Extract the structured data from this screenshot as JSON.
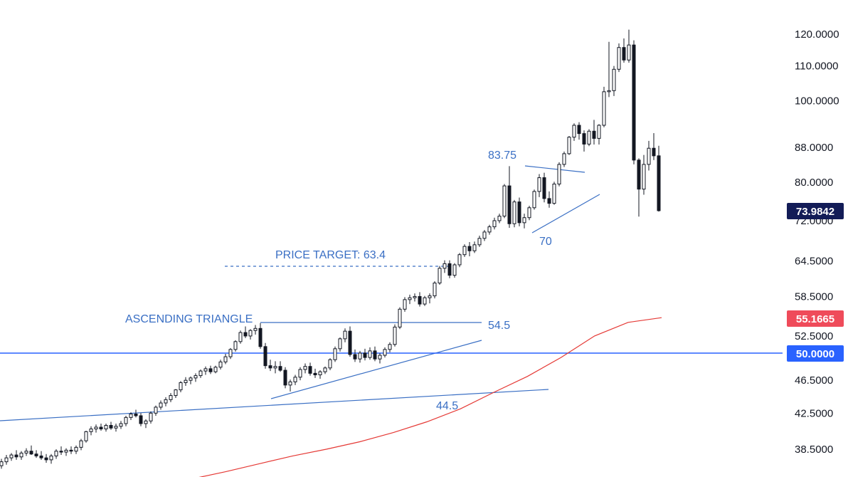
{
  "chart_data": {
    "type": "candlestick",
    "y_scale": "log",
    "ylim": [
      36.5,
      121.5
    ],
    "y_ticks": [
      "120.0000",
      "110.0000",
      "100.0000",
      "88.0000",
      "80.0000",
      "72.0000",
      "64.5000",
      "58.5000",
      "52.5000",
      "46.5000",
      "42.5000",
      "38.5000"
    ],
    "price_badges": [
      {
        "label": "73.9842",
        "color": "#131c57"
      },
      {
        "label": "55.1665",
        "color": "#ef4b5a"
      },
      {
        "label": "50.0000",
        "color": "#2962ff"
      }
    ],
    "annotations": {
      "ascending_triangle": "ASCENDING TRIANGLE",
      "price_target": "PRICE TARGET: 63.4",
      "resistance": "54.5",
      "trend_support": "44.5",
      "pennant_high": "83.75",
      "pennant_low": "70"
    },
    "levels": {
      "horizontal_support": 50.0,
      "resistance": 54.5,
      "price_target": 63.4
    },
    "moving_average": {
      "color": "#e53935",
      "values": [
        35.5,
        36.2,
        37.0,
        37.8,
        38.5,
        39.3,
        40.3,
        41.5,
        43.0,
        45.0,
        47.0,
        49.5,
        52.5,
        54.5,
        55.2
      ]
    },
    "candles": [
      [
        36.8,
        37.5,
        36.5,
        37.2
      ],
      [
        37.2,
        37.9,
        36.9,
        37.6
      ],
      [
        37.6,
        38.1,
        37.3,
        37.9
      ],
      [
        37.9,
        38.4,
        37.4,
        37.7
      ],
      [
        37.7,
        38.3,
        37.4,
        38.1
      ],
      [
        38.1,
        38.6,
        37.8,
        38.3
      ],
      [
        38.3,
        38.9,
        37.9,
        38.0
      ],
      [
        38.0,
        38.4,
        37.6,
        37.8
      ],
      [
        37.8,
        38.3,
        37.4,
        37.6
      ],
      [
        37.6,
        38.0,
        37.1,
        37.4
      ],
      [
        37.4,
        38.0,
        37.0,
        37.8
      ],
      [
        37.8,
        38.5,
        37.5,
        38.3
      ],
      [
        38.3,
        38.8,
        37.9,
        38.2
      ],
      [
        38.2,
        38.6,
        37.8,
        38.4
      ],
      [
        38.4,
        38.8,
        38.0,
        38.3
      ],
      [
        38.3,
        38.9,
        38.0,
        38.7
      ],
      [
        38.7,
        39.6,
        38.4,
        39.4
      ],
      [
        39.4,
        40.5,
        39.2,
        40.4
      ],
      [
        40.4,
        41.0,
        40.0,
        40.7
      ],
      [
        40.7,
        41.2,
        40.3,
        40.9
      ],
      [
        40.9,
        41.3,
        40.5,
        40.7
      ],
      [
        40.7,
        41.3,
        40.4,
        41.1
      ],
      [
        41.1,
        41.5,
        40.6,
        40.8
      ],
      [
        40.8,
        41.3,
        40.4,
        41.0
      ],
      [
        41.0,
        41.6,
        40.7,
        41.3
      ],
      [
        41.3,
        42.2,
        41.0,
        42.0
      ],
      [
        42.0,
        42.6,
        41.7,
        42.4
      ],
      [
        42.4,
        42.9,
        42.0,
        42.2
      ],
      [
        42.2,
        42.5,
        41.0,
        41.3
      ],
      [
        41.3,
        41.8,
        40.8,
        41.6
      ],
      [
        41.6,
        42.7,
        41.3,
        42.5
      ],
      [
        42.5,
        43.4,
        42.2,
        43.2
      ],
      [
        43.2,
        44.0,
        42.9,
        43.7
      ],
      [
        43.7,
        44.4,
        43.3,
        44.1
      ],
      [
        44.1,
        44.9,
        43.8,
        44.6
      ],
      [
        44.6,
        45.4,
        44.3,
        45.3
      ],
      [
        45.3,
        46.4,
        45.0,
        46.2
      ],
      [
        46.2,
        46.9,
        45.8,
        46.5
      ],
      [
        46.5,
        47.0,
        46.0,
        46.8
      ],
      [
        46.8,
        47.4,
        46.3,
        47.1
      ],
      [
        47.1,
        47.9,
        46.8,
        47.7
      ],
      [
        47.7,
        48.3,
        47.2,
        48.0
      ],
      [
        48.0,
        48.4,
        47.3,
        47.6
      ],
      [
        47.6,
        48.4,
        47.4,
        48.2
      ],
      [
        48.2,
        49.2,
        47.9,
        48.9
      ],
      [
        48.9,
        50.0,
        48.6,
        49.6
      ],
      [
        49.6,
        50.8,
        49.3,
        50.6
      ],
      [
        50.6,
        51.9,
        50.3,
        51.7
      ],
      [
        51.7,
        53.3,
        51.4,
        53.0
      ],
      [
        53.0,
        53.9,
        52.2,
        52.5
      ],
      [
        52.5,
        53.5,
        52.0,
        53.3
      ],
      [
        53.3,
        54.1,
        52.7,
        53.6
      ],
      [
        53.6,
        54.4,
        50.7,
        51.0
      ],
      [
        51.0,
        51.5,
        48.0,
        48.4
      ],
      [
        48.4,
        49.2,
        47.7,
        48.1
      ],
      [
        48.1,
        49.0,
        47.4,
        48.3
      ],
      [
        48.3,
        49.0,
        47.6,
        47.8
      ],
      [
        47.8,
        48.2,
        45.5,
        45.9
      ],
      [
        45.9,
        46.6,
        45.1,
        46.3
      ],
      [
        46.3,
        47.2,
        45.9,
        46.9
      ],
      [
        46.9,
        48.2,
        46.5,
        47.9
      ],
      [
        47.9,
        48.7,
        47.4,
        48.3
      ],
      [
        48.3,
        48.8,
        47.1,
        47.4
      ],
      [
        47.4,
        48.0,
        46.8,
        47.2
      ],
      [
        47.2,
        47.8,
        46.7,
        47.6
      ],
      [
        47.6,
        48.3,
        47.3,
        48.1
      ],
      [
        48.1,
        49.4,
        47.8,
        49.2
      ],
      [
        49.2,
        51.0,
        48.9,
        50.7
      ],
      [
        50.7,
        52.3,
        50.3,
        52.1
      ],
      [
        52.1,
        53.6,
        51.6,
        53.2
      ],
      [
        53.2,
        53.9,
        49.6,
        49.9
      ],
      [
        49.9,
        50.6,
        48.9,
        49.3
      ],
      [
        49.3,
        50.4,
        48.8,
        50.1
      ],
      [
        50.1,
        50.7,
        49.1,
        49.5
      ],
      [
        49.5,
        50.9,
        49.2,
        50.4
      ],
      [
        50.4,
        51.0,
        49.0,
        49.3
      ],
      [
        49.3,
        50.1,
        48.7,
        49.8
      ],
      [
        49.8,
        50.9,
        49.5,
        50.6
      ],
      [
        50.6,
        51.6,
        50.2,
        51.3
      ],
      [
        51.3,
        54.2,
        51.0,
        53.8
      ],
      [
        53.8,
        56.8,
        53.5,
        56.5
      ],
      [
        56.5,
        58.4,
        56.1,
        58.0
      ],
      [
        58.0,
        58.8,
        57.3,
        58.3
      ],
      [
        58.3,
        59.0,
        57.7,
        58.5
      ],
      [
        58.5,
        59.2,
        56.9,
        57.3
      ],
      [
        57.3,
        58.6,
        57.0,
        58.3
      ],
      [
        58.3,
        59.0,
        57.4,
        58.6
      ],
      [
        58.6,
        61.0,
        58.2,
        60.7
      ],
      [
        60.7,
        63.6,
        60.4,
        63.2
      ],
      [
        63.2,
        64.6,
        62.4,
        64.0
      ],
      [
        64.0,
        64.6,
        61.5,
        62.0
      ],
      [
        62.0,
        64.1,
        61.6,
        63.8
      ],
      [
        63.8,
        65.9,
        63.4,
        65.6
      ],
      [
        65.6,
        67.5,
        65.2,
        67.1
      ],
      [
        67.1,
        67.9,
        65.3,
        66.3
      ],
      [
        66.3,
        68.0,
        65.9,
        67.4
      ],
      [
        67.4,
        69.1,
        67.0,
        68.6
      ],
      [
        68.6,
        70.2,
        68.1,
        69.8
      ],
      [
        69.8,
        71.2,
        69.3,
        70.8
      ],
      [
        70.8,
        72.6,
        70.3,
        72.0
      ],
      [
        72.0,
        73.4,
        71.5,
        72.9
      ],
      [
        72.9,
        79.6,
        72.5,
        79.2
      ],
      [
        79.2,
        83.6,
        70.6,
        71.4
      ],
      [
        71.4,
        76.2,
        70.7,
        75.8
      ],
      [
        75.8,
        76.7,
        70.9,
        71.6
      ],
      [
        71.6,
        73.4,
        70.5,
        72.6
      ],
      [
        72.6,
        75.0,
        72.1,
        74.6
      ],
      [
        74.6,
        78.4,
        74.2,
        78.0
      ],
      [
        78.0,
        81.8,
        76.8,
        81.0
      ],
      [
        81.0,
        82.1,
        75.7,
        76.5
      ],
      [
        76.5,
        78.0,
        74.6,
        75.5
      ],
      [
        75.5,
        80.1,
        75.2,
        79.6
      ],
      [
        79.6,
        84.5,
        79.1,
        84.0
      ],
      [
        84.0,
        87.0,
        83.4,
        86.5
      ],
      [
        86.5,
        90.8,
        86.2,
        90.5
      ],
      [
        90.5,
        94.0,
        89.6,
        93.5
      ],
      [
        93.5,
        94.3,
        89.9,
        91.4
      ],
      [
        91.4,
        92.2,
        87.0,
        88.8
      ],
      [
        88.8,
        92.5,
        88.3,
        92.0
      ],
      [
        92.0,
        94.9,
        88.7,
        90.2
      ],
      [
        90.2,
        93.8,
        88.7,
        93.5
      ],
      [
        93.5,
        103.9,
        93.0,
        102.5
      ],
      [
        102.5,
        117.5,
        101.0,
        102.8
      ],
      [
        102.8,
        110.0,
        101.3,
        109.0
      ],
      [
        109.0,
        117.0,
        108.2,
        115.7
      ],
      [
        115.7,
        118.6,
        111.0,
        111.8
      ],
      [
        111.8,
        121.5,
        111.0,
        116.5
      ],
      [
        116.5,
        118.0,
        84.0,
        85.0
      ],
      [
        85.0,
        85.4,
        72.8,
        78.5
      ],
      [
        78.5,
        86.2,
        77.3,
        84.0
      ],
      [
        84.0,
        89.6,
        82.6,
        87.8
      ],
      [
        87.8,
        91.5,
        85.0,
        86.0
      ],
      [
        86.0,
        88.4,
        73.8,
        74.0
      ]
    ]
  }
}
